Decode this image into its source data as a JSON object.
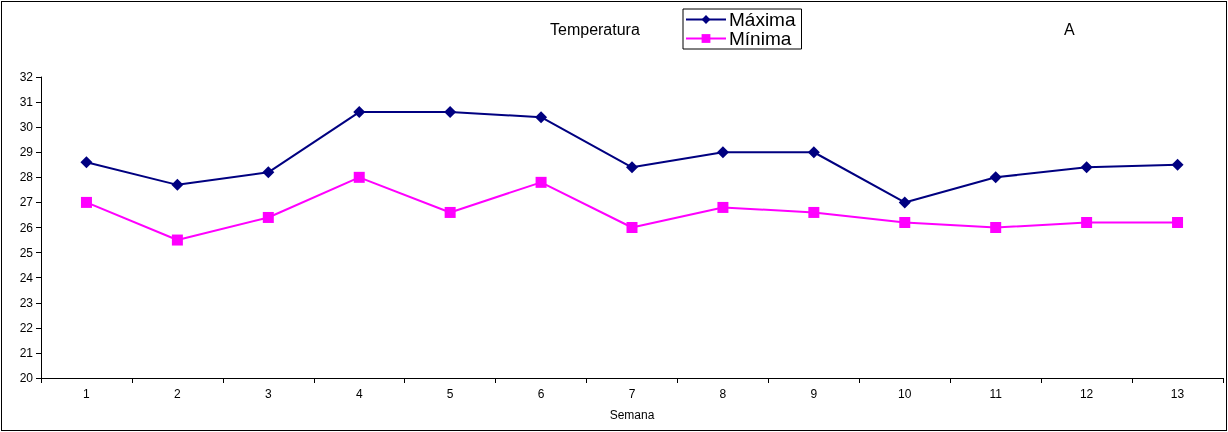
{
  "chart_data": {
    "type": "line",
    "title": "Temperatura",
    "xlabel": "Semana",
    "annotations": [
      "A"
    ],
    "categories": [
      "1",
      "2",
      "3",
      "4",
      "5",
      "6",
      "7",
      "8",
      "9",
      "10",
      "11",
      "12",
      "13"
    ],
    "ylim": [
      20,
      32
    ],
    "yticks": [
      20,
      21,
      22,
      23,
      24,
      25,
      26,
      27,
      28,
      29,
      30,
      31,
      32
    ],
    "grid": false,
    "legend": "top",
    "series": [
      {
        "name": "Máxima",
        "color": "#000080",
        "marker": "diamond",
        "values": [
          28.6,
          27.7,
          28.2,
          30.6,
          30.6,
          30.4,
          28.4,
          29,
          29,
          27,
          28,
          28.4,
          28.5
        ]
      },
      {
        "name": "Mínima",
        "color": "#ff00ff",
        "marker": "square",
        "values": [
          27,
          25.5,
          26.4,
          28,
          26.6,
          27.8,
          26,
          26.8,
          26.6,
          26.2,
          26,
          26.2,
          26.2
        ]
      }
    ]
  }
}
